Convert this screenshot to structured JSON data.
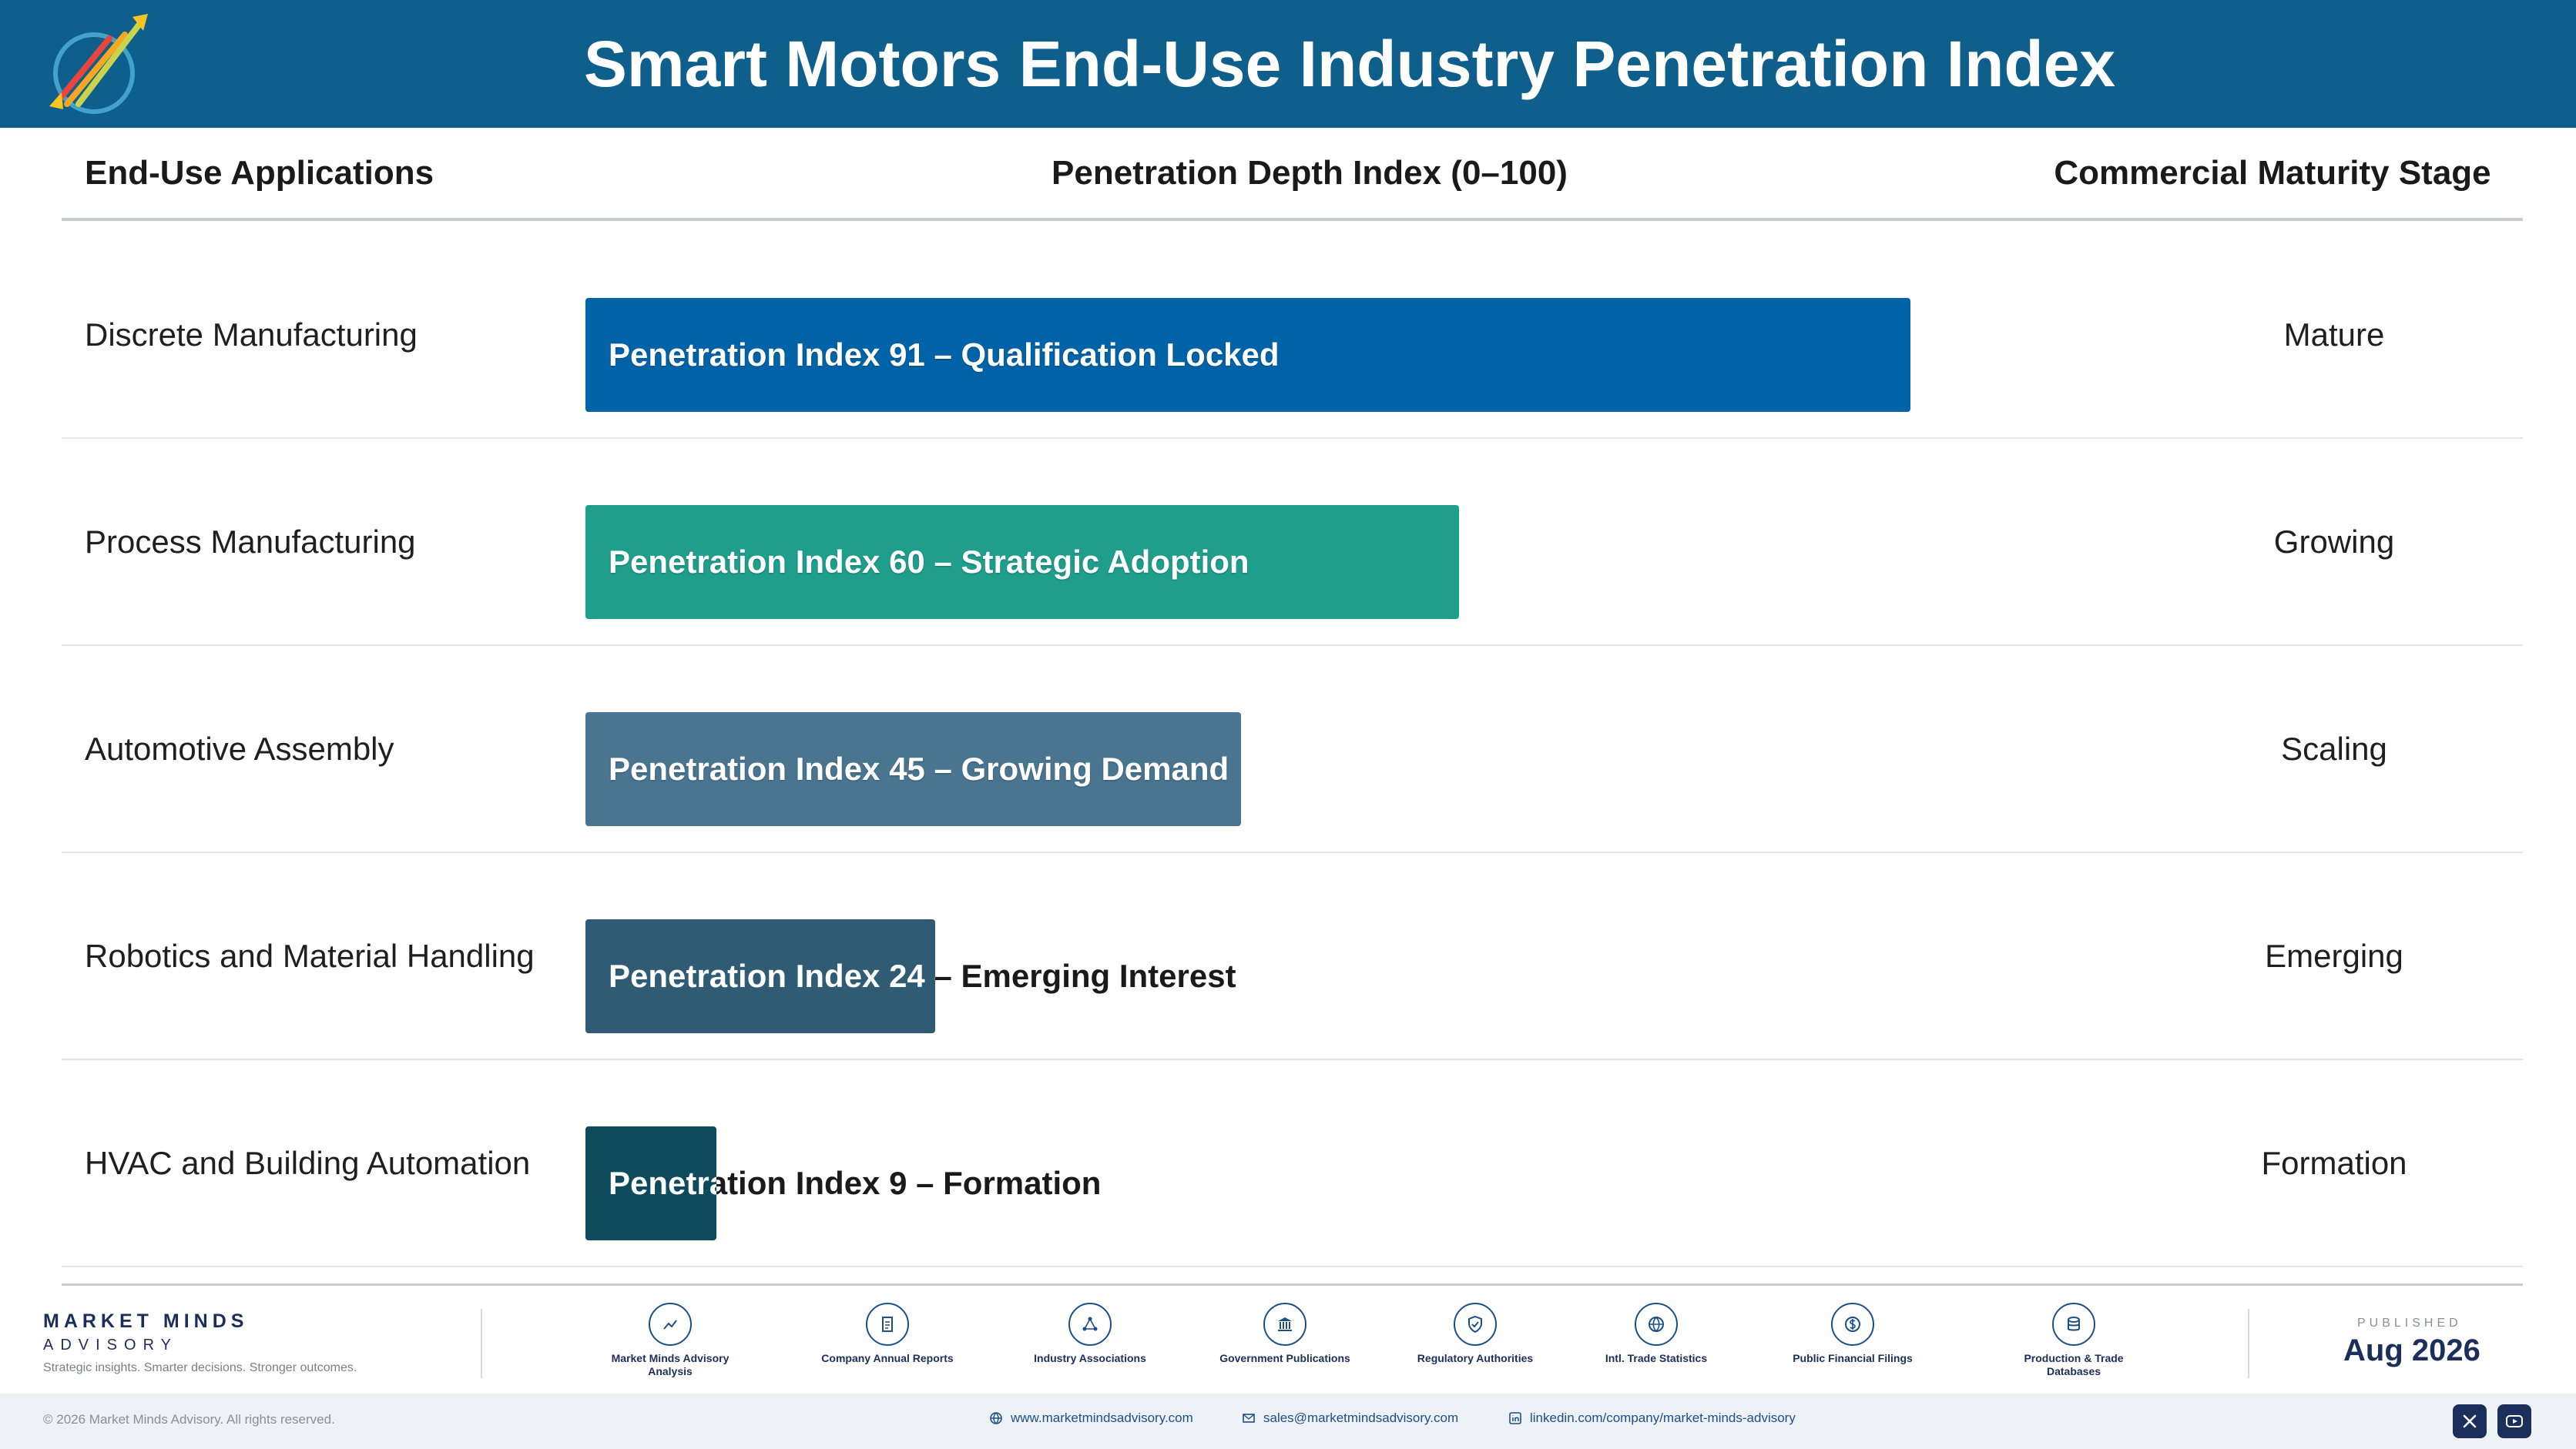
{
  "header": {
    "title": "Smart Motors End-Use Industry Penetration Index",
    "logo_icon": "market-minds-logo"
  },
  "columns": {
    "applications": "End-Use Applications",
    "penetration": "Penetration Depth Index (0–100)",
    "maturity": "Commercial Maturity Stage"
  },
  "chart_data": {
    "type": "bar",
    "orientation": "horizontal",
    "title": "Smart Motors End-Use Industry Penetration Index",
    "xlabel": "Penetration Depth Index (0–100)",
    "xlim": [
      0,
      100
    ],
    "categories": [
      "Discrete Manufacturing",
      "Process Manufacturing",
      "Automotive Assembly",
      "Robotics and Material Handling",
      "HVAC and Building Automation"
    ],
    "values": [
      91,
      60,
      45,
      24,
      9
    ],
    "bar_labels": [
      "Penetration Index 91 – Qualification Locked",
      "Penetration Index 60 – Strategic Adoption",
      "Penetration Index 45 – Growing Demand",
      "Penetration Index 24 – Emerging Interest",
      "Penetration Index 9 – Formation"
    ],
    "stages": [
      "Mature",
      "Growing",
      "Scaling",
      "Emerging",
      "Formation"
    ],
    "colors": [
      "#0063a8",
      "#1f9e8c",
      "#4a7590",
      "#2f5b74",
      "#0d4b5c"
    ]
  },
  "footer": {
    "brand_name": "MARKET MINDS",
    "brand_sub": "ADVISORY",
    "tagline": "Strategic insights. Smarter decisions. Stronger outcomes.",
    "sources": [
      {
        "label": "Market Minds Advisory Analysis",
        "icon": "chart-trend-icon"
      },
      {
        "label": "Company Annual Reports",
        "icon": "document-icon"
      },
      {
        "label": "Industry Associations",
        "icon": "network-icon"
      },
      {
        "label": "Government Publications",
        "icon": "government-building-icon"
      },
      {
        "label": "Regulatory Authorities",
        "icon": "shield-check-icon"
      },
      {
        "label": "Intl. Trade Statistics",
        "icon": "globe-icon"
      },
      {
        "label": "Public Financial Filings",
        "icon": "currency-icon"
      },
      {
        "label": "Production & Trade Databases",
        "icon": "database-icon"
      }
    ],
    "published_label": "PUBLISHED",
    "published_date": "Aug 2026",
    "copyright": "© 2026 Market Minds Advisory. All rights reserved.",
    "website": "www.marketmindsadvisory.com",
    "email": "sales@marketmindsadvisory.com",
    "linkedin": "linkedin.com/company/market-minds-advisory"
  }
}
